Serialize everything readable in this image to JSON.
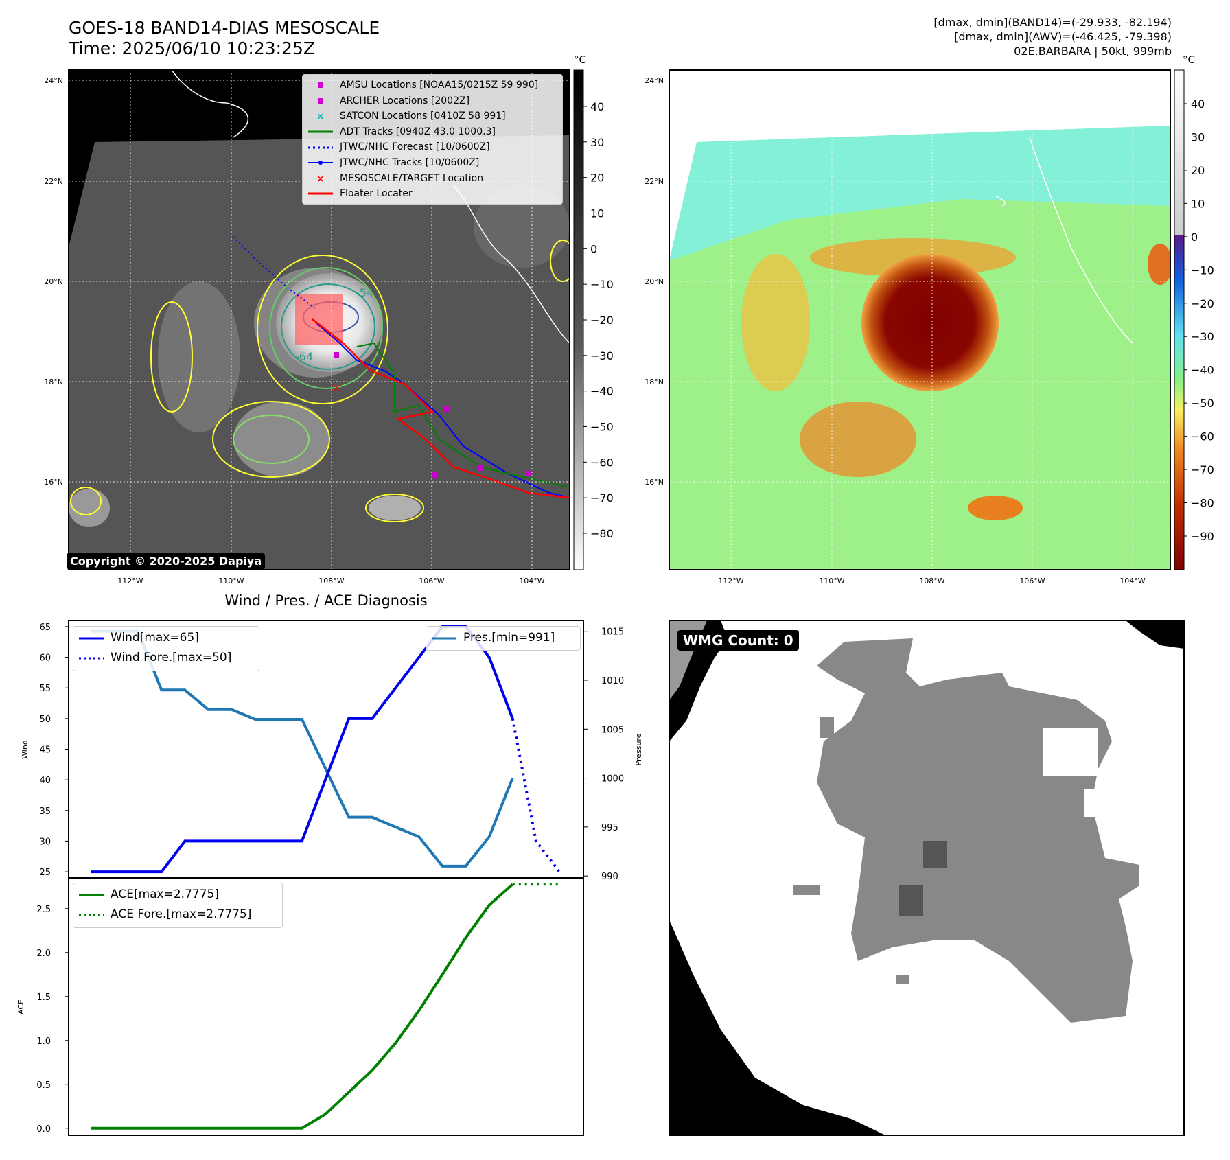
{
  "header": {
    "title_line1": "GOES-18 BAND14-DIAS MESOSCALE",
    "title_line2": "Time: 2025/06/10 10:23:25Z",
    "right_line1": "[dmax, dmin](BAND14)=(-29.933, -82.194)",
    "right_line2": "[dmax, dmin](AWV)=(-46.425, -79.398)",
    "right_line3": "02E.BARBARA | 50kt, 999mb"
  },
  "maps": {
    "lat_labels": [
      "24°N",
      "22°N",
      "20°N",
      "18°N",
      "16°N"
    ],
    "lon_labels": [
      "112°W",
      "110°W",
      "108°W",
      "106°W",
      "104°W"
    ],
    "copyright": "Copyright © 2020-2025 Dapiya",
    "contour_labels": [
      "-54",
      "-64"
    ],
    "colors": {
      "ocean": "#555555",
      "coast": "#ffffff",
      "cold_contour": "#ffff33",
      "mid_contour": "#66cc66",
      "core_contour": "#339999"
    }
  },
  "map_legend": [
    {
      "label": "AMSU Locations [NOAA15/0215Z 59 990]",
      "marker": "square",
      "color": "#cc00cc"
    },
    {
      "label": "ARCHER Locations [2002Z]",
      "marker": "square",
      "color": "#cc00cc"
    },
    {
      "label": "SATCON Locations [0410Z 58 991]",
      "marker": "x",
      "color": "#00b3b3"
    },
    {
      "label": "ADT Tracks [0940Z 43.0 1000.3]",
      "marker": "line",
      "color": "#008000"
    },
    {
      "label": "JTWC/NHC Forecast [10/0600Z]",
      "marker": "dotted",
      "color": "#0000ff"
    },
    {
      "label": "JTWC/NHC Tracks [10/0600Z]",
      "marker": "line-dot",
      "color": "#0000ff"
    },
    {
      "label": "MESOSCALE/TARGET Location",
      "marker": "x",
      "color": "#ff0000"
    },
    {
      "label": "Floater Locater",
      "marker": "line",
      "color": "#ff0000"
    }
  ],
  "colorbar_left": {
    "unit": "°C",
    "ticks": [
      "40",
      "30",
      "20",
      "10",
      "0",
      "−10",
      "−20",
      "−30",
      "−40",
      "−50",
      "−60",
      "−70",
      "−80"
    ]
  },
  "colorbar_right": {
    "unit": "°C",
    "ticks": [
      "40",
      "30",
      "20",
      "10",
      "0",
      "−10",
      "−20",
      "−30",
      "−40",
      "−50",
      "−60",
      "−70",
      "−80",
      "−90"
    ]
  },
  "wmg": {
    "label": "WMG Count: 0"
  },
  "chart_data": [
    {
      "type": "line",
      "title": "Wind / Pres. / ACE Diagnosis",
      "ylabel": "Wind",
      "ylabel_right": "Pressure",
      "ylim": [
        24,
        66
      ],
      "ylim_right": [
        989.8,
        1016.1
      ],
      "yticks": [
        "65",
        "60",
        "55",
        "50",
        "45",
        "40",
        "35",
        "30",
        "25"
      ],
      "yticks_right": [
        "1015",
        "1010",
        "1005",
        "1000",
        "995",
        "990"
      ],
      "x": [
        0,
        1,
        2,
        3,
        4,
        5,
        6,
        7,
        8,
        9,
        10,
        11,
        12,
        13,
        14,
        15,
        16,
        17,
        18,
        19
      ],
      "series": [
        {
          "name": "Wind[max=65]",
          "axis": "left",
          "style": "solid",
          "color": "#0000ee",
          "values": [
            25,
            25,
            25,
            25,
            30,
            30,
            30,
            30,
            30,
            30,
            40,
            50,
            50,
            55,
            60,
            65,
            65,
            60,
            50,
            null
          ]
        },
        {
          "name": "Wind Fore.[max=50]",
          "axis": "left",
          "style": "dotted",
          "color": "#0000ee",
          "values": [
            null,
            null,
            null,
            null,
            null,
            null,
            null,
            null,
            null,
            null,
            null,
            null,
            null,
            null,
            null,
            null,
            null,
            null,
            50,
            25
          ],
          "points_x": [
            18,
            18.5,
            19,
            20
          ],
          "points_y": [
            50,
            40,
            30,
            25
          ]
        },
        {
          "name": "Pres.[min=991]",
          "axis": "right",
          "style": "solid",
          "color": "#1f77b4",
          "values": [
            1015,
            1015,
            1015,
            1009,
            1009,
            1007,
            1007,
            1006,
            1006,
            1006,
            1001,
            996,
            996,
            995,
            994,
            991,
            991,
            994,
            1000,
            null
          ]
        }
      ]
    },
    {
      "type": "line",
      "ylabel": "ACE",
      "ylim": [
        -0.08,
        2.85
      ],
      "yticks": [
        "2.5",
        "2.0",
        "1.5",
        "1.0",
        "0.5",
        "0.0"
      ],
      "x": [
        0,
        1,
        2,
        3,
        4,
        5,
        6,
        7,
        8,
        9,
        10,
        11,
        12,
        13,
        14,
        15,
        16,
        17,
        18
      ],
      "series": [
        {
          "name": "ACE[max=2.7775]",
          "style": "solid",
          "color": "#008000",
          "values": [
            0,
            0,
            0,
            0,
            0,
            0,
            0,
            0,
            0,
            0,
            0.16,
            0.41,
            0.66,
            0.97,
            1.34,
            1.75,
            2.17,
            2.54,
            2.7775
          ]
        },
        {
          "name": "ACE Fore.[max=2.7775]",
          "style": "dotted",
          "color": "#008000",
          "points_x": [
            18,
            20
          ],
          "points_y": [
            2.7775,
            2.7775
          ]
        }
      ]
    }
  ]
}
